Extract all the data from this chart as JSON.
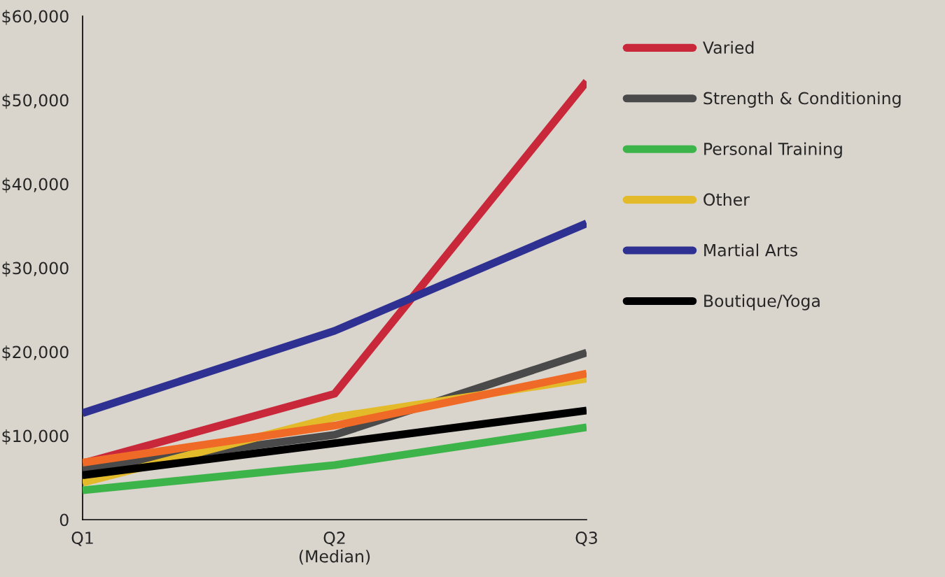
{
  "chart_data": {
    "type": "line",
    "categories": [
      "Q1",
      "Q2\n(Median)",
      "Q3"
    ],
    "ylim": [
      0,
      60000
    ],
    "yticks": [
      {
        "value": 0,
        "label": "0"
      },
      {
        "value": 10000,
        "label": "$10,000"
      },
      {
        "value": 20000,
        "label": "$20,000"
      },
      {
        "value": 30000,
        "label": "$30,000"
      },
      {
        "value": 40000,
        "label": "$40,000"
      },
      {
        "value": 50000,
        "label": "$50,000"
      },
      {
        "value": 60000,
        "label": "$60,000"
      }
    ],
    "grid": false,
    "legend": "right",
    "marker": "none",
    "line_style": "solid",
    "series": [
      {
        "name": "Varied",
        "color": "#c8283a",
        "values": [
          6700,
          15000,
          52200
        ]
      },
      {
        "name": "Strength & Conditioning",
        "color": "#4a4a4a",
        "values": [
          6100,
          10100,
          19900
        ]
      },
      {
        "name": "Personal Training",
        "color": "#3cb44a",
        "values": [
          3500,
          6500,
          11000
        ]
      },
      {
        "name": "Other",
        "color": "#e3bb2a",
        "values": [
          4400,
          12200,
          16800
        ]
      },
      {
        "name": "Martial Arts",
        "color": "#2e3192",
        "values": [
          12700,
          22500,
          35300
        ]
      },
      {
        "color": "#f06a27",
        "values": [
          6800,
          11200,
          17400
        ]
      },
      {
        "name": "Boutique/Yoga",
        "color": "#000000",
        "values": [
          5300,
          9100,
          13000
        ]
      }
    ]
  }
}
